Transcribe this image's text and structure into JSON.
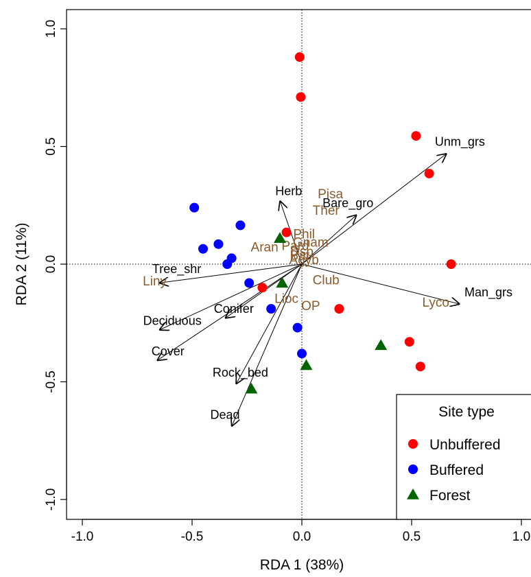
{
  "chart_data": {
    "type": "scatter",
    "title": "",
    "xlabel": "RDA 1 (38%)",
    "ylabel": "RDA 2 (11%)",
    "xlim": [
      -1.0,
      1.0
    ],
    "ylim": [
      -1.0,
      1.0
    ],
    "x_ticks": [
      "-1.0",
      "-0.5",
      "0.0",
      "0.5",
      "1.0"
    ],
    "y_ticks": [
      "-1.0",
      "-0.5",
      "0.0",
      "0.5",
      "1.0"
    ],
    "reference_lines": "dotted lines at x=0 and y=0",
    "legend": {
      "title": "Site type",
      "placement": "bottom-right",
      "entries": [
        {
          "label": "Unbuffered",
          "color": "#ff0000",
          "marker": "circle"
        },
        {
          "label": "Buffered",
          "color": "#0000ff",
          "marker": "circle"
        },
        {
          "label": "Forest",
          "color": "#006400",
          "marker": "triangle"
        }
      ]
    },
    "series": [
      {
        "name": "Unbuffered",
        "color": "#ff0000",
        "marker": "circle",
        "points": [
          [
            -0.01,
            0.88
          ],
          [
            -0.005,
            0.71
          ],
          [
            0.52,
            0.545
          ],
          [
            0.58,
            0.385
          ],
          [
            0.68,
            0.0
          ],
          [
            -0.07,
            0.135
          ],
          [
            -0.18,
            -0.1
          ],
          [
            0.17,
            -0.19
          ],
          [
            0.49,
            -0.33
          ],
          [
            0.54,
            -0.435
          ]
        ]
      },
      {
        "name": "Buffered",
        "color": "#0000ff",
        "marker": "circle",
        "points": [
          [
            -0.49,
            0.24
          ],
          [
            -0.28,
            0.165
          ],
          [
            -0.45,
            0.065
          ],
          [
            -0.38,
            0.085
          ],
          [
            -0.32,
            0.025
          ],
          [
            -0.34,
            0.0
          ],
          [
            -0.24,
            -0.08
          ],
          [
            -0.14,
            -0.19
          ],
          [
            -0.02,
            -0.27
          ],
          [
            0.0,
            -0.38
          ]
        ]
      },
      {
        "name": "Forest",
        "color": "#006400",
        "marker": "triangle",
        "points": [
          [
            -0.1,
            0.11
          ],
          [
            -0.09,
            -0.08
          ],
          [
            0.36,
            -0.345
          ],
          [
            0.02,
            -0.43
          ],
          [
            -0.23,
            -0.53
          ]
        ]
      }
    ],
    "env_vectors": [
      {
        "label": "Unm_grs",
        "x": 0.66,
        "y": 0.47,
        "lx": 0.72,
        "ly": 0.52
      },
      {
        "label": "Man_grs",
        "x": 0.72,
        "y": -0.17,
        "lx": 0.85,
        "ly": -0.12
      },
      {
        "label": "Bare_gro",
        "x": 0.25,
        "y": 0.21,
        "lx": 0.21,
        "ly": 0.26
      },
      {
        "label": "Herb",
        "x": -0.1,
        "y": 0.27,
        "lx": -0.06,
        "ly": 0.31
      },
      {
        "label": "Tree_shr",
        "x": -0.65,
        "y": -0.08,
        "lx": -0.57,
        "ly": -0.02
      },
      {
        "label": "Conifer",
        "x": -0.35,
        "y": -0.23,
        "lx": -0.31,
        "ly": -0.19
      },
      {
        "label": "Deciduous",
        "x": -0.65,
        "y": -0.28,
        "lx": -0.59,
        "ly": -0.24
      },
      {
        "label": "Cover",
        "x": -0.66,
        "y": -0.41,
        "lx": -0.61,
        "ly": -0.37
      },
      {
        "label": "Rock_bed",
        "x": -0.3,
        "y": -0.51,
        "lx": -0.28,
        "ly": -0.46
      },
      {
        "label": "Dead",
        "x": -0.32,
        "y": -0.69,
        "lx": -0.35,
        "ly": -0.64
      }
    ],
    "species_labels": [
      {
        "label": "Pisa",
        "x": 0.13,
        "y": 0.3
      },
      {
        "label": "Ther",
        "x": 0.11,
        "y": 0.23
      },
      {
        "label": "Phil",
        "x": 0.01,
        "y": 0.13
      },
      {
        "label": "Aran",
        "x": -0.17,
        "y": 0.075
      },
      {
        "label": "Pard",
        "x": -0.03,
        "y": 0.08
      },
      {
        "label": "Gnam",
        "x": 0.04,
        "y": 0.095
      },
      {
        "label": "Dsp",
        "x": 0.0,
        "y": 0.055
      },
      {
        "label": "Bat",
        "x": -0.01,
        "y": 0.04
      },
      {
        "label": "Agyb",
        "x": 0.01,
        "y": 0.02
      },
      {
        "label": "Club",
        "x": 0.11,
        "y": -0.065
      },
      {
        "label": "Liny",
        "x": -0.67,
        "y": -0.07
      },
      {
        "label": "Lioc",
        "x": -0.07,
        "y": -0.145
      },
      {
        "label": "OP",
        "x": 0.04,
        "y": -0.175
      },
      {
        "label": "Lyco",
        "x": 0.61,
        "y": -0.16
      }
    ]
  }
}
